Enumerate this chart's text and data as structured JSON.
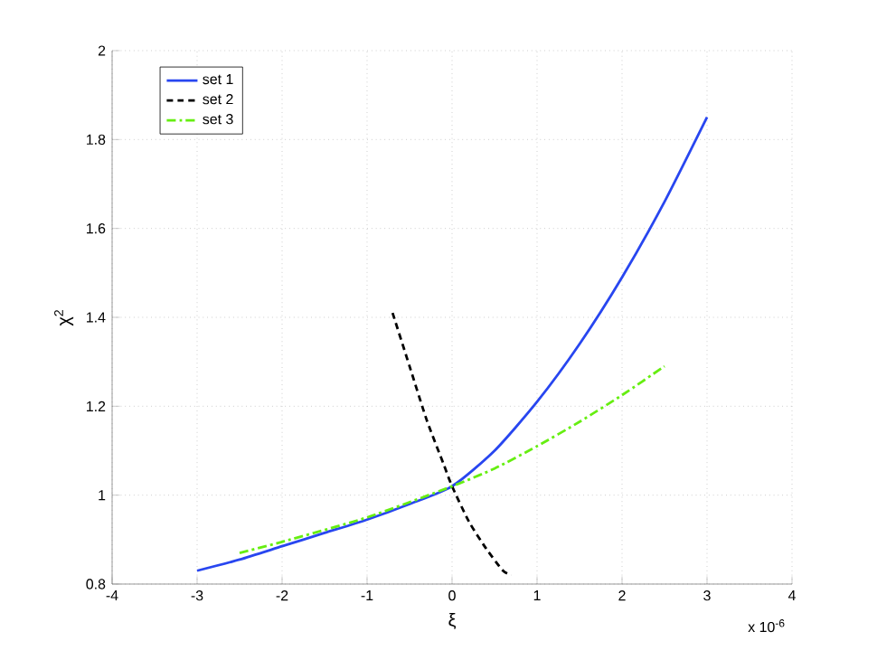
{
  "chart_data": {
    "type": "line",
    "xlabel": "ξ",
    "ylabel": "χ$^{2}$",
    "annotations": [
      "x 10$^{-6}$"
    ],
    "xlim": [
      -4,
      4
    ],
    "xticks": [
      -4,
      -3,
      -2,
      -1,
      0,
      1,
      2,
      3,
      4
    ],
    "ylim": [
      0.8,
      2
    ],
    "yticks": [
      0.8,
      1,
      1.2,
      1.4,
      1.6,
      1.8,
      2
    ],
    "grid": true,
    "legend": "top left",
    "marker": "none",
    "series": [
      {
        "name": "set 1",
        "color": "#2846f0",
        "line_style": "solid",
        "x": [
          -3,
          -2.5,
          -2,
          -1.5,
          -1,
          -0.5,
          0,
          0.5,
          1,
          1.5,
          2,
          2.5,
          3
        ],
        "values": [
          0.83,
          0.855,
          0.885,
          0.915,
          0.945,
          0.98,
          1.02,
          1.1,
          1.21,
          1.34,
          1.49,
          1.66,
          1.85
        ]
      },
      {
        "name": "set 2",
        "color": "#000000",
        "line_style": "dashed",
        "x": [
          -0.7,
          -0.5,
          -0.3,
          -0.1,
          0,
          0.2,
          0.4,
          0.6,
          0.7
        ],
        "values": [
          1.41,
          1.29,
          1.17,
          1.07,
          1.02,
          0.94,
          0.88,
          0.83,
          0.82
        ]
      },
      {
        "name": "set 3",
        "color": "#66ee11",
        "line_style": "dashdot",
        "x": [
          -2.5,
          -2,
          -1,
          0,
          0.5,
          1,
          1.5,
          2,
          2.5
        ],
        "values": [
          0.87,
          0.895,
          0.95,
          1.02,
          1.06,
          1.11,
          1.165,
          1.225,
          1.29
        ]
      }
    ]
  }
}
